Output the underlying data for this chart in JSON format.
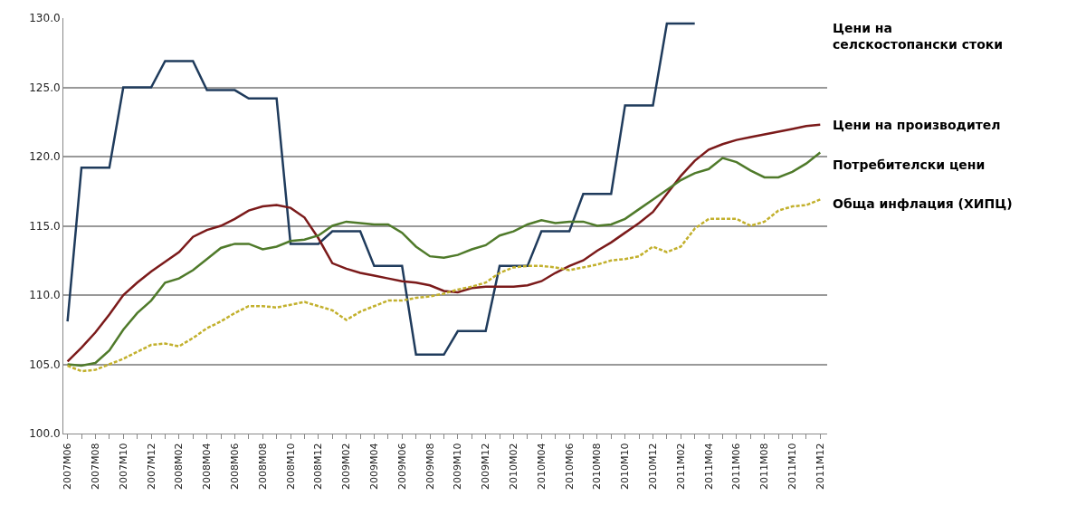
{
  "chart_data": {
    "type": "line",
    "categories": [
      "2007M06",
      null,
      "2007M08",
      null,
      "2007M10",
      null,
      "2007M12",
      null,
      "2008M02",
      null,
      "2008M04",
      null,
      "2008M06",
      null,
      "2008M08",
      null,
      "2008M10",
      null,
      "2008M12",
      null,
      "2009M02",
      null,
      "2009M04",
      null,
      "2009M06",
      null,
      "2009M08",
      null,
      "2009M10",
      null,
      "2009M12",
      null,
      "2010M02",
      null,
      "2010M04",
      null,
      "2010M06",
      null,
      "2010M08",
      null,
      "2010M10",
      null,
      "2010M12",
      null,
      "2011M02",
      null,
      "2011M04",
      null,
      "2011M06",
      null,
      "2011M08",
      null,
      "2011M10",
      null,
      "2011M12"
    ],
    "series": [
      {
        "name": "Цени на селскостопански стоки",
        "color": "#1f3b5c",
        "line_style": "solid",
        "values": [
          108.1,
          119.2,
          119.2,
          119.2,
          125.0,
          125.0,
          125.0,
          126.9,
          126.9,
          126.9,
          124.8,
          124.8,
          124.8,
          124.2,
          124.2,
          124.2,
          113.7,
          113.7,
          113.7,
          114.6,
          114.6,
          114.6,
          112.1,
          112.1,
          112.1,
          105.7,
          105.7,
          105.7,
          107.4,
          107.4,
          107.4,
          112.1,
          112.1,
          112.1,
          114.6,
          114.6,
          114.6,
          117.3,
          117.3,
          117.3,
          123.7,
          123.7,
          123.7,
          129.6,
          129.6,
          129.6,
          null,
          null,
          null,
          null,
          null,
          null,
          null,
          null,
          null
        ]
      },
      {
        "name": "Цени на производител",
        "color": "#7b1a1a",
        "line_style": "solid",
        "values": [
          105.2,
          106.2,
          107.3,
          108.6,
          110.0,
          110.9,
          111.7,
          112.4,
          113.1,
          114.2,
          114.7,
          115.0,
          115.5,
          116.1,
          116.4,
          116.5,
          116.3,
          115.6,
          114.1,
          112.3,
          111.9,
          111.6,
          111.4,
          111.2,
          111.0,
          110.9,
          110.7,
          110.3,
          110.2,
          110.5,
          110.6,
          110.6,
          110.6,
          110.7,
          111.0,
          111.6,
          112.1,
          112.5,
          113.2,
          113.8,
          114.5,
          115.2,
          116.0,
          117.3,
          118.6,
          119.7,
          120.5,
          120.9,
          121.2,
          121.4,
          121.6,
          121.8,
          122.0,
          122.2,
          122.3
        ]
      },
      {
        "name": "Потребителски цени",
        "color": "#4f7a2a",
        "line_style": "solid",
        "values": [
          105.0,
          104.9,
          105.1,
          106.0,
          107.5,
          108.7,
          109.6,
          110.9,
          111.2,
          111.8,
          112.6,
          113.4,
          113.7,
          113.7,
          113.3,
          113.5,
          113.9,
          114.0,
          114.3,
          115.0,
          115.3,
          115.2,
          115.1,
          115.1,
          114.5,
          113.5,
          112.8,
          112.7,
          112.9,
          113.3,
          113.6,
          114.3,
          114.6,
          115.1,
          115.4,
          115.2,
          115.3,
          115.3,
          115.0,
          115.1,
          115.5,
          116.2,
          116.9,
          117.6,
          118.3,
          118.8,
          119.1,
          119.9,
          119.6,
          119.0,
          118.5,
          118.5,
          118.9,
          119.5,
          120.3
        ]
      },
      {
        "name": "Обща инфлация (ХИПЦ)",
        "color": "#c2b02c",
        "line_style": "dashed",
        "values": [
          104.9,
          104.5,
          104.6,
          105.0,
          105.4,
          105.9,
          106.4,
          106.5,
          106.3,
          106.9,
          107.6,
          108.1,
          108.7,
          109.2,
          109.2,
          109.1,
          109.3,
          109.5,
          109.2,
          108.9,
          108.2,
          108.8,
          109.2,
          109.6,
          109.6,
          109.8,
          109.9,
          110.1,
          110.4,
          110.6,
          110.9,
          111.6,
          112.0,
          112.1,
          112.1,
          112.0,
          111.8,
          112.0,
          112.2,
          112.5,
          112.6,
          112.8,
          113.5,
          113.1,
          113.5,
          114.8,
          115.5,
          115.5,
          115.5,
          115.0,
          115.3,
          116.1,
          116.4,
          116.5,
          116.9
        ]
      }
    ],
    "ylim": [
      100,
      130
    ],
    "yticks": [
      {
        "value": 100,
        "label": "100.0"
      },
      {
        "value": 105,
        "label": "105.0"
      },
      {
        "value": 110,
        "label": "110.0"
      },
      {
        "value": 115,
        "label": "115.0"
      },
      {
        "value": 120,
        "label": "120.0"
      },
      {
        "value": 125,
        "label": "125.0"
      },
      {
        "value": 130,
        "label": "130.0"
      }
    ],
    "grid": "y",
    "legend": false
  }
}
